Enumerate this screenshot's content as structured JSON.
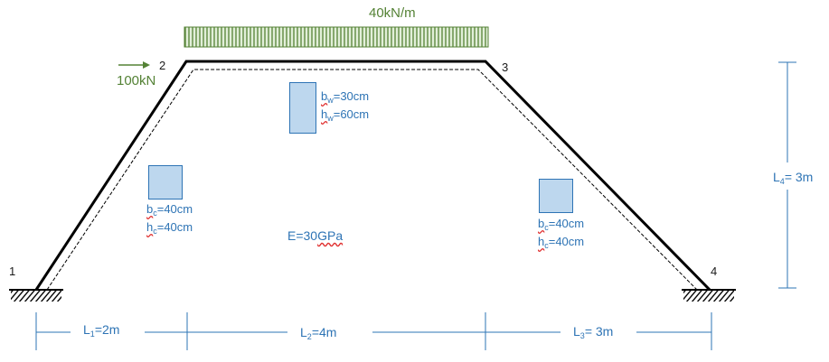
{
  "load": {
    "distributed": "40kN/m",
    "point": "100kN"
  },
  "nodes": {
    "n1": "1",
    "n2": "2",
    "n3": "3",
    "n4": "4"
  },
  "beam_section": {
    "b": {
      "sym": "b",
      "sub": "w",
      "val": "=30cm"
    },
    "h": {
      "sym": "h",
      "sub": "w",
      "val": "=60cm"
    }
  },
  "left_column_section": {
    "b": {
      "sym": "b",
      "sub": "c",
      "val": "=40cm"
    },
    "h": {
      "sym": "h",
      "sub": "c",
      "val": "=40cm"
    }
  },
  "right_column_section": {
    "b": {
      "sym": "b",
      "sub": "c",
      "val": "=40cm"
    },
    "h": {
      "sym": "h",
      "sub": "c",
      "val": "=40cm"
    }
  },
  "material": {
    "pre": "E=30",
    "unit": "GPa"
  },
  "dimensions": {
    "L1": {
      "sym": "L",
      "sub": "1",
      "val": "=2m"
    },
    "L2": {
      "sym": "L",
      "sub": "2",
      "val": "=4m"
    },
    "L3": {
      "sym": "L",
      "sub": "3",
      "val": "= 3m"
    },
    "L4": {
      "sym": "L",
      "sub": "4",
      "val": "= 3m"
    }
  },
  "colors": {
    "frame": "#000000",
    "dimension": "#2e74b5",
    "load": "#548235",
    "section_fill": "#bdd7ee"
  }
}
